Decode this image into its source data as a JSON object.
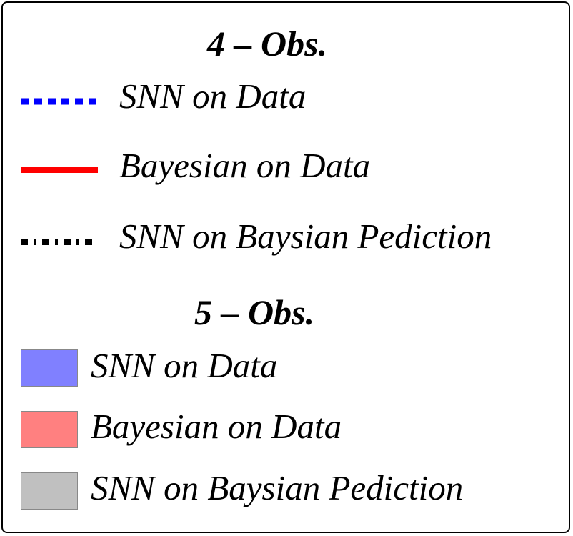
{
  "chart_data": {
    "type": "legend",
    "groups": [
      {
        "title": "4 – Obs.",
        "entries": [
          {
            "label": "SNN on Data",
            "style": "dotted",
            "color": "#0000ff"
          },
          {
            "label": "Bayesian on Data",
            "style": "solid",
            "color": "#ff0000"
          },
          {
            "label": "SNN on Baysian Pediction",
            "style": "dash-dot",
            "color": "#000000"
          }
        ]
      },
      {
        "title": "5 – Obs.",
        "entries": [
          {
            "label": "SNN on Data",
            "style": "patch",
            "color": "#8080ff"
          },
          {
            "label": "Bayesian on Data",
            "style": "patch",
            "color": "#ff8080"
          },
          {
            "label": "SNN on Baysian Pediction",
            "style": "patch",
            "color": "#c0c0c0"
          }
        ]
      }
    ]
  }
}
